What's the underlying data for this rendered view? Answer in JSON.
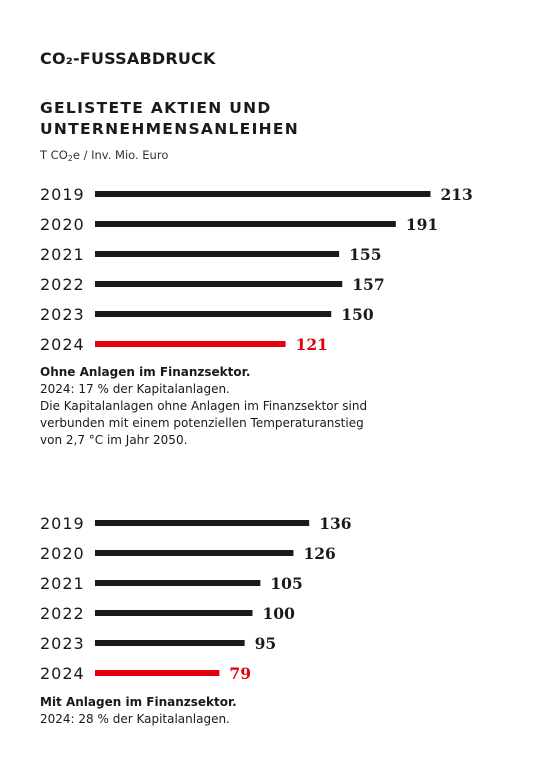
{
  "header": {
    "title_prefix": "CO",
    "title_subscript": "₂",
    "title_suffix": "-FUSSABDRUCK",
    "subtitle_line1": "GELISTETE AKTIEN UND",
    "subtitle_line2": "UNTERNEHMENSANLEIHEN",
    "unit_prefix": "T CO",
    "unit_subscript": "2",
    "unit_suffix": "e / Inv. Mio. Euro"
  },
  "colors": {
    "bar_default": "#1a1a1a",
    "bar_highlight": "#e3000f",
    "text_default": "#1a1a1a"
  },
  "chart_data": [
    {
      "type": "bar",
      "orientation": "horizontal",
      "categories": [
        "2019",
        "2020",
        "2021",
        "2022",
        "2023",
        "2024"
      ],
      "values": [
        213,
        191,
        155,
        157,
        150,
        121
      ],
      "highlight_category": "2024",
      "title": "",
      "xlabel": "",
      "ylabel": "",
      "grid": false,
      "note_title": "Ohne Anlagen im Finanzsektor.",
      "note_lines": [
        "2024: 17 % der Kapitalanlagen.",
        "Die Kapitalanlagen ohne Anlagen im Finanzsektor sind",
        "verbunden mit einem potenziellen Temperaturanstieg",
        "von 2,7 °C im Jahr 2050."
      ]
    },
    {
      "type": "bar",
      "orientation": "horizontal",
      "categories": [
        "2019",
        "2020",
        "2021",
        "2022",
        "2023",
        "2024"
      ],
      "values": [
        136,
        126,
        105,
        100,
        95,
        79
      ],
      "highlight_category": "2024",
      "title": "",
      "xlabel": "",
      "ylabel": "",
      "grid": false,
      "note_title": "Mit Anlagen im Finanzsektor.",
      "note_lines": [
        "2024: 28 % der Kapitalanlagen."
      ]
    }
  ]
}
